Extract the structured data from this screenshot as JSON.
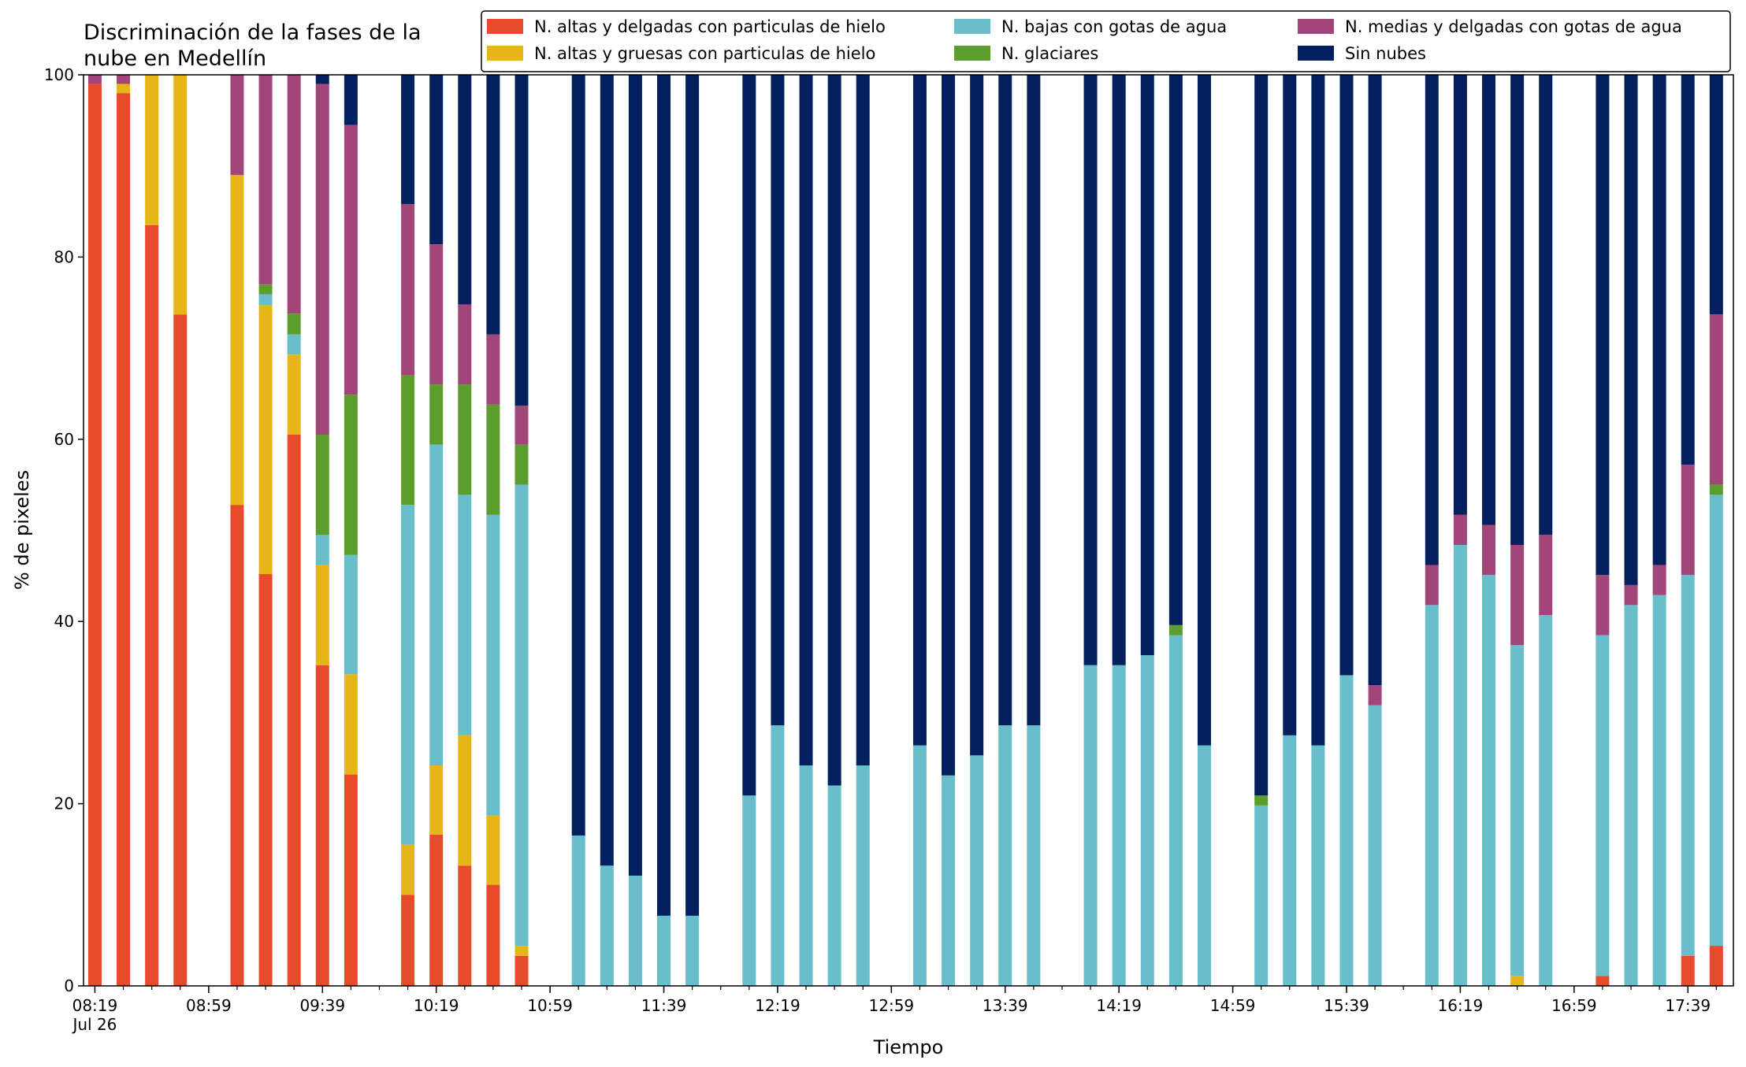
{
  "chart_data": {
    "type": "bar",
    "stacked": true,
    "title_lines": [
      "Discriminación de la fases de la",
      "nube en Medellín"
    ],
    "xlabel": "Tiempo",
    "ylabel": "% de pixeles",
    "ylim": [
      0,
      100
    ],
    "yticks": [
      0,
      20,
      40,
      60,
      80,
      100
    ],
    "xlim_minutes": [
      -4,
      576
    ],
    "x_tick_labels": [
      {
        "minute": 0,
        "label": "08:19",
        "sublabel": "Jul 26"
      },
      {
        "minute": 40,
        "label": "08:59"
      },
      {
        "minute": 80,
        "label": "09:39"
      },
      {
        "minute": 120,
        "label": "10:19"
      },
      {
        "minute": 160,
        "label": "10:59"
      },
      {
        "minute": 200,
        "label": "11:39"
      },
      {
        "minute": 240,
        "label": "12:19"
      },
      {
        "minute": 280,
        "label": "12:59"
      },
      {
        "minute": 320,
        "label": "13:39"
      },
      {
        "minute": 360,
        "label": "14:19"
      },
      {
        "minute": 400,
        "label": "14:59"
      },
      {
        "minute": 440,
        "label": "15:39"
      },
      {
        "minute": 480,
        "label": "16:19"
      },
      {
        "minute": 520,
        "label": "16:59"
      },
      {
        "minute": 560,
        "label": "17:39"
      }
    ],
    "x_minor_tick_step_minutes": 10,
    "legend_position": "top-right",
    "legend_columns": 3,
    "series": [
      {
        "name": "N. altas y delgadas con particulas de hielo",
        "color": "#E84A2C"
      },
      {
        "name": "N. altas y gruesas con particulas de hielo",
        "color": "#E6B619"
      },
      {
        "name": "N. bajas con gotas de agua",
        "color": "#68BECA"
      },
      {
        "name": "N. glaciares",
        "color": "#5B9E2E"
      },
      {
        "name": "N. medias y delgadas con gotas de agua",
        "color": "#A2467A"
      },
      {
        "name": "Sin nubes",
        "color": "#03205E"
      }
    ],
    "bars": [
      {
        "x": 0,
        "values": [
          99,
          0,
          0,
          0,
          1,
          0
        ]
      },
      {
        "x": 10,
        "values": [
          98,
          1,
          0,
          0,
          1,
          0
        ]
      },
      {
        "x": 20,
        "values": [
          83.5,
          16.5,
          0,
          0,
          0,
          0
        ]
      },
      {
        "x": 30,
        "values": [
          73.7,
          26.3,
          0,
          0,
          0,
          0
        ]
      },
      {
        "x": 50,
        "values": [
          52.8,
          36.2,
          0,
          0,
          11,
          0
        ]
      },
      {
        "x": 60,
        "values": [
          45.2,
          29.5,
          1.2,
          1.1,
          23,
          0
        ]
      },
      {
        "x": 70,
        "values": [
          60.5,
          8.8,
          2.2,
          2.3,
          26.2,
          0
        ]
      },
      {
        "x": 80,
        "values": [
          35.2,
          11,
          3.3,
          11,
          38.5,
          1
        ]
      },
      {
        "x": 90,
        "values": [
          23.2,
          11,
          13.1,
          17.6,
          29.6,
          5.5
        ]
      },
      {
        "x": 110,
        "values": [
          10,
          5.5,
          37.3,
          14.2,
          18.8,
          14.2
        ]
      },
      {
        "x": 120,
        "values": [
          16.6,
          7.6,
          35.2,
          6.6,
          15.4,
          18.6
        ]
      },
      {
        "x": 130,
        "values": [
          13.2,
          14.3,
          26.4,
          12.1,
          8.8,
          25.2
        ]
      },
      {
        "x": 140,
        "values": [
          11.1,
          7.6,
          33,
          12.1,
          7.7,
          28.5
        ]
      },
      {
        "x": 150,
        "values": [
          3.3,
          1.1,
          50.6,
          4.4,
          4.3,
          36.3
        ]
      },
      {
        "x": 170,
        "values": [
          0,
          0,
          16.5,
          0,
          0,
          83.5
        ]
      },
      {
        "x": 180,
        "values": [
          0,
          0,
          13.2,
          0,
          0,
          86.8
        ]
      },
      {
        "x": 190,
        "values": [
          0,
          0,
          12.1,
          0,
          0,
          87.9
        ]
      },
      {
        "x": 200,
        "values": [
          0,
          0,
          7.7,
          0,
          0,
          92.3
        ]
      },
      {
        "x": 210,
        "values": [
          0,
          0,
          7.7,
          0,
          0,
          92.3
        ]
      },
      {
        "x": 230,
        "values": [
          0,
          0,
          20.9,
          0,
          0,
          79.1
        ]
      },
      {
        "x": 240,
        "values": [
          0,
          0,
          28.6,
          0,
          0,
          71.4
        ]
      },
      {
        "x": 250,
        "values": [
          0,
          0,
          24.2,
          0,
          0,
          75.8
        ]
      },
      {
        "x": 260,
        "values": [
          0,
          0,
          22,
          0,
          0,
          78
        ]
      },
      {
        "x": 270,
        "values": [
          0,
          0,
          24.2,
          0,
          0,
          75.8
        ]
      },
      {
        "x": 290,
        "values": [
          0,
          0,
          26.4,
          0,
          0,
          73.6
        ]
      },
      {
        "x": 300,
        "values": [
          0,
          0,
          23.1,
          0,
          0,
          76.9
        ]
      },
      {
        "x": 310,
        "values": [
          0,
          0,
          25.3,
          0,
          0,
          74.7
        ]
      },
      {
        "x": 320,
        "values": [
          0,
          0,
          28.6,
          0,
          0,
          71.4
        ]
      },
      {
        "x": 330,
        "values": [
          0,
          0,
          28.6,
          0,
          0,
          71.4
        ]
      },
      {
        "x": 350,
        "values": [
          0,
          0,
          35.2,
          0,
          0,
          64.8
        ]
      },
      {
        "x": 360,
        "values": [
          0,
          0,
          35.2,
          0,
          0,
          64.8
        ]
      },
      {
        "x": 370,
        "values": [
          0,
          0,
          36.3,
          0,
          0,
          63.7
        ]
      },
      {
        "x": 380,
        "values": [
          0,
          0,
          38.5,
          1.1,
          0,
          60.4
        ]
      },
      {
        "x": 390,
        "values": [
          0,
          0,
          26.4,
          0,
          0,
          73.6
        ]
      },
      {
        "x": 410,
        "values": [
          0,
          0,
          19.8,
          1.1,
          0,
          79.1
        ]
      },
      {
        "x": 420,
        "values": [
          0,
          0,
          27.5,
          0,
          0,
          72.5
        ]
      },
      {
        "x": 430,
        "values": [
          0,
          0,
          26.4,
          0,
          0,
          73.6
        ]
      },
      {
        "x": 440,
        "values": [
          0,
          0,
          34.1,
          0,
          0,
          65.9
        ]
      },
      {
        "x": 450,
        "values": [
          0,
          0,
          30.8,
          0,
          2.2,
          67
        ]
      },
      {
        "x": 470,
        "values": [
          0,
          0,
          41.8,
          0,
          4.4,
          53.8
        ]
      },
      {
        "x": 480,
        "values": [
          0,
          0,
          48.4,
          0,
          3.3,
          48.3
        ]
      },
      {
        "x": 490,
        "values": [
          0,
          0,
          45.1,
          0,
          5.5,
          49.4
        ]
      },
      {
        "x": 500,
        "values": [
          0,
          1.1,
          36.3,
          0,
          11,
          51.6
        ]
      },
      {
        "x": 510,
        "values": [
          0,
          0,
          40.7,
          0,
          8.8,
          50.5
        ]
      },
      {
        "x": 530,
        "values": [
          1.1,
          0,
          37.4,
          0,
          6.6,
          54.9
        ]
      },
      {
        "x": 540,
        "values": [
          0,
          0,
          41.8,
          0,
          2.2,
          56
        ]
      },
      {
        "x": 550,
        "values": [
          0,
          0,
          42.9,
          0,
          3.3,
          53.8
        ]
      },
      {
        "x": 560,
        "values": [
          3.3,
          0,
          41.8,
          0,
          12.1,
          42.8
        ]
      },
      {
        "x": 570,
        "values": [
          4.4,
          0,
          49.5,
          1.1,
          18.7,
          26.3
        ]
      }
    ]
  }
}
